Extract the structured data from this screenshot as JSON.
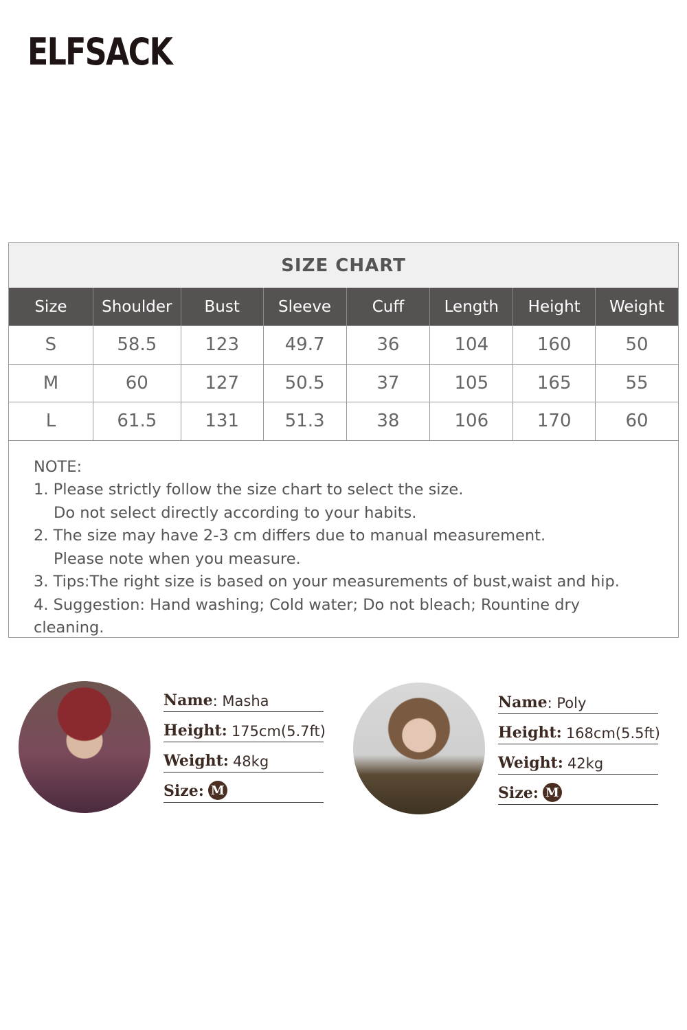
{
  "brand": {
    "logo": "ELFSACK"
  },
  "size_chart": {
    "title": "SIZE CHART",
    "columns": [
      "Size",
      "Shoulder",
      "Bust",
      "Sleeve",
      "Cuff",
      "Length",
      "Height",
      "Weight"
    ],
    "rows": [
      [
        "S",
        "58.5",
        "123",
        "49.7",
        "36",
        "104",
        "160",
        "50"
      ],
      [
        "M",
        "60",
        "127",
        "50.5",
        "37",
        "105",
        "165",
        "55"
      ],
      [
        "L",
        "61.5",
        "131",
        "51.3",
        "38",
        "106",
        "170",
        "60"
      ]
    ]
  },
  "notes": {
    "heading": "NOTE:",
    "lines": [
      "1. Please strictly follow the size chart to select the size.",
      "Do not select directly according to your habits.",
      "2. The size may have 2-3 cm differs due to manual measurement.",
      "Please note when you measure.",
      "3. Tips:The right size is based on your measurements of bust,waist and hip.",
      "4. Suggestion: Hand washing; Cold water; Do not bleach; Rountine dry cleaning."
    ]
  },
  "models": [
    {
      "name_label": "Name",
      "name": ": Masha",
      "height_label": "Height:",
      "height": "175cm(5.7ft)",
      "weight_label": "Weight:",
      "weight": "48kg",
      "size_label": "Size:",
      "size": "M"
    },
    {
      "name_label": "Name",
      "name": ": Poly",
      "height_label": "Height:",
      "height": "168cm(5.5ft)",
      "weight_label": "Weight:",
      "weight": "42kg",
      "size_label": "Size:",
      "size": "M"
    }
  ]
}
